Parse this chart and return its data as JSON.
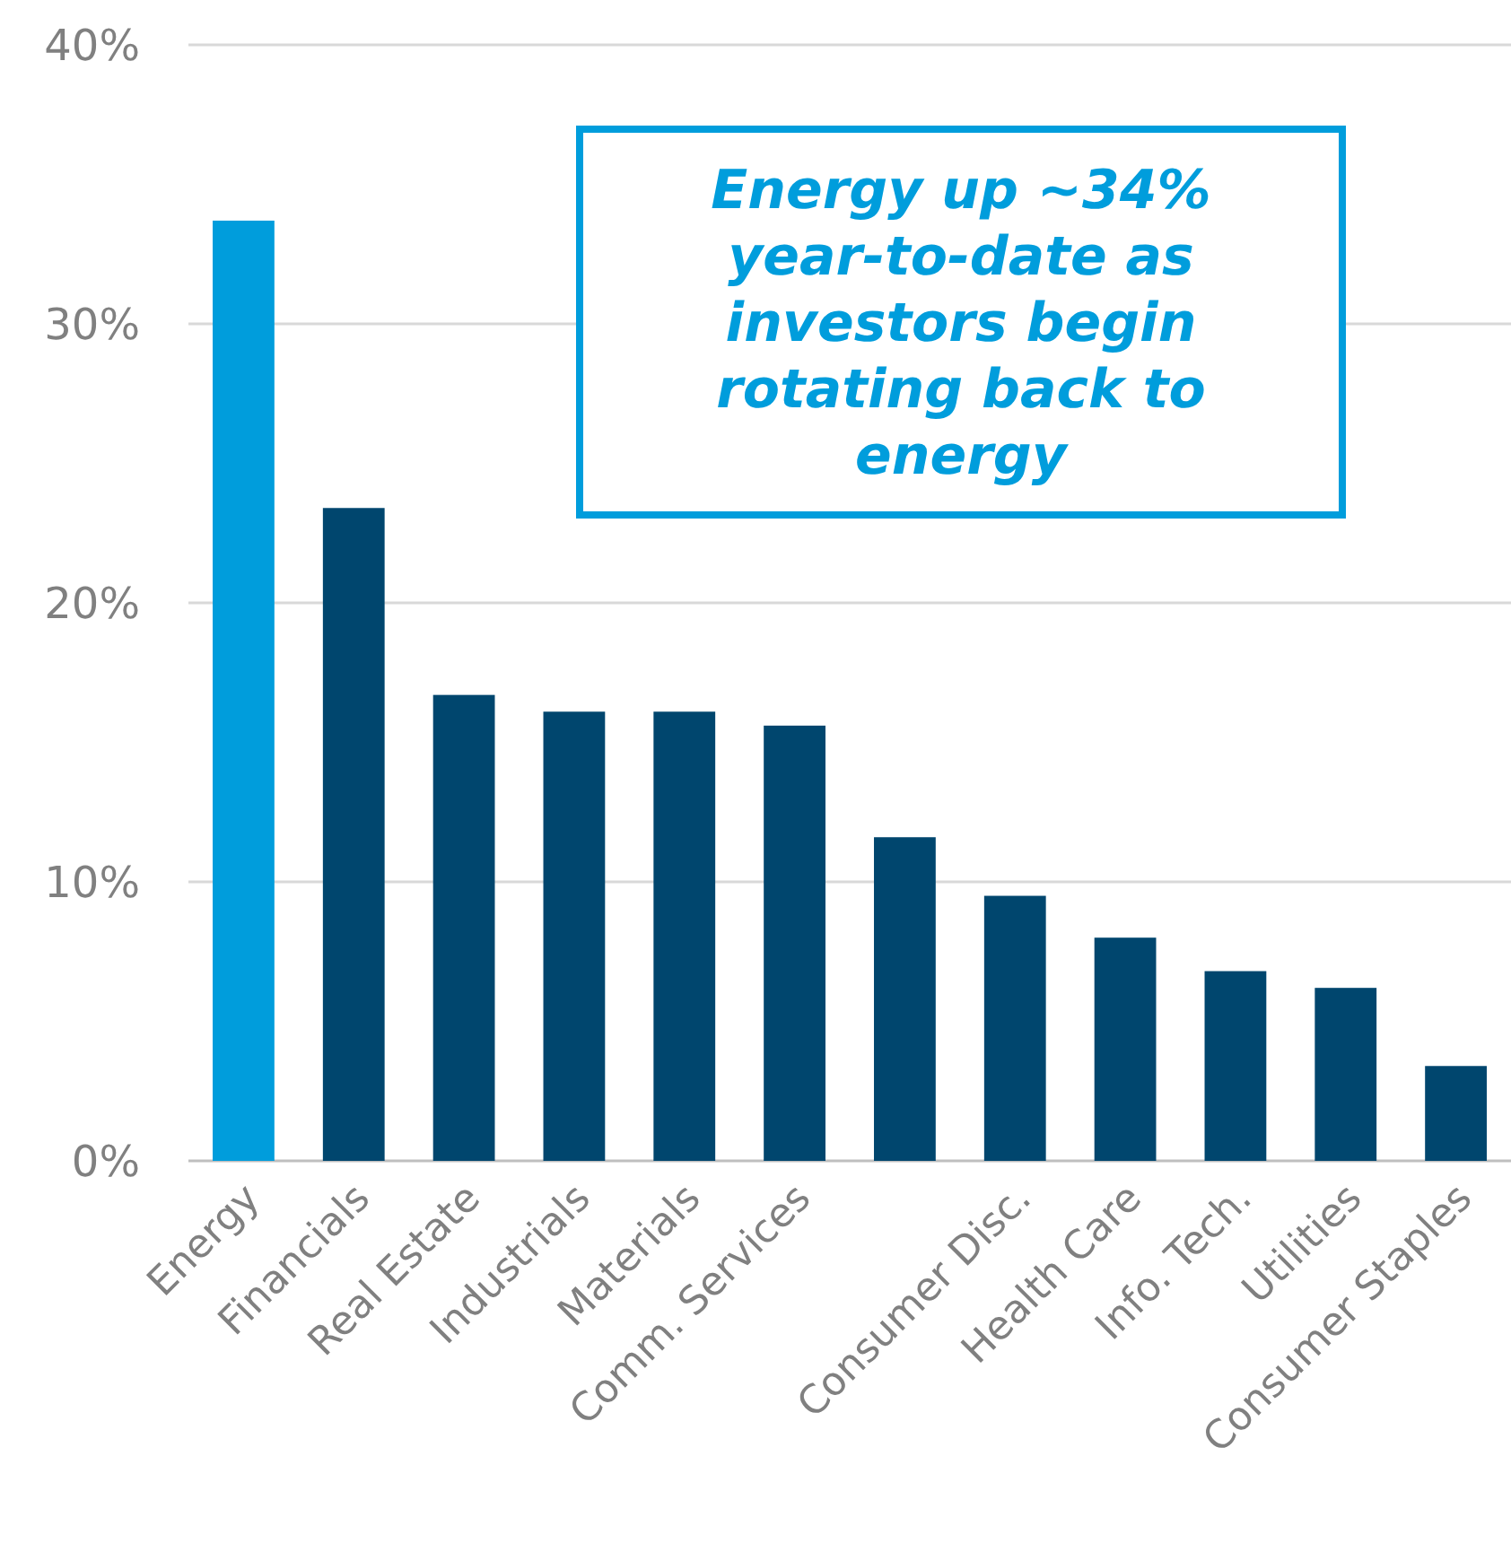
{
  "chart_data": {
    "type": "bar",
    "categories": [
      "Energy",
      "Financials",
      "Real Estate",
      "Industrials",
      "Materials",
      "Comm. Services",
      null,
      "Consumer Disc.",
      "Health Care",
      "Info. Tech.",
      "Utilities",
      "Consumer Staples"
    ],
    "values": [
      33.7,
      23.4,
      16.7,
      16.1,
      16.1,
      15.6,
      11.6,
      9.5,
      8.0,
      6.8,
      6.2,
      3.4
    ],
    "colors": [
      "#009ddc",
      "#00466e",
      "#00466e",
      "#00466e",
      "#00466e",
      "#00466e",
      "#00466e",
      "#00466e",
      "#00466e",
      "#00466e",
      "#00466e",
      "#00466e"
    ],
    "ylim": [
      0,
      40
    ],
    "yticks": [
      {
        "value": 0,
        "label": "0%"
      },
      {
        "value": 10,
        "label": "10%"
      },
      {
        "value": 20,
        "label": "20%"
      },
      {
        "value": 30,
        "label": "30%"
      },
      {
        "value": 40,
        "label": "40%"
      }
    ],
    "grid": "y",
    "annotations": [
      "Energy up ~34% year-to-date as investors begin rotating back to energy"
    ]
  }
}
